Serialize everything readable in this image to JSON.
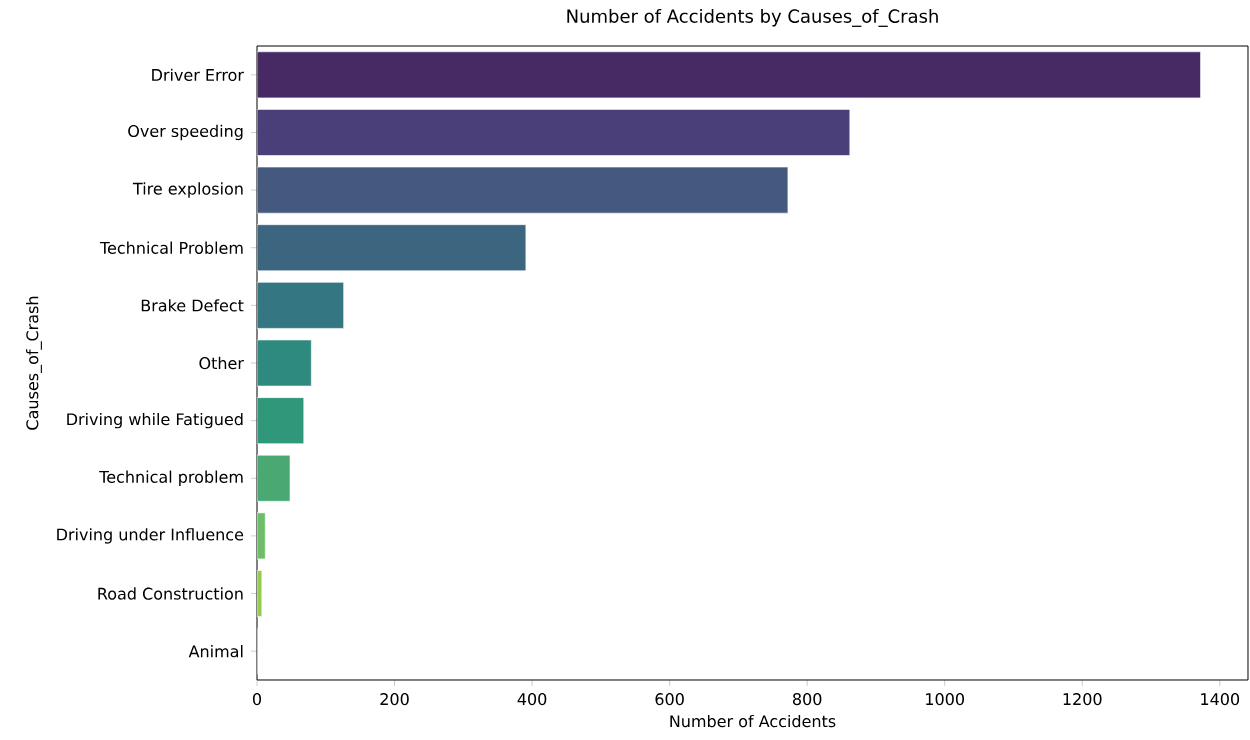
{
  "chart_data": {
    "type": "bar",
    "orientation": "horizontal",
    "title": "Number of Accidents by Causes_of_Crash",
    "xlabel": "Number of Accidents",
    "ylabel": "Causes_of_Crash",
    "categories": [
      "Driver Error",
      "Over speeding",
      "Tire explosion",
      "Technical Problem",
      "Brake Defect",
      "Other",
      "Driving while Fatigued",
      "Technical problem",
      "Driving under Influence",
      "Road Construction",
      "Animal"
    ],
    "values": [
      1372,
      862,
      772,
      391,
      126,
      79,
      68,
      48,
      12,
      7,
      0
    ],
    "colors": [
      "#472a63",
      "#4a3f79",
      "#45587e",
      "#3c6680",
      "#347782",
      "#2e8a7f",
      "#2f987b",
      "#4aa873",
      "#6ebd68",
      "#95cb4f",
      "#c8d548"
    ],
    "xlim": [
      0,
      1441
    ],
    "xticks": [
      0,
      200,
      400,
      600,
      800,
      1000,
      1200,
      1400
    ],
    "grid": false
  }
}
